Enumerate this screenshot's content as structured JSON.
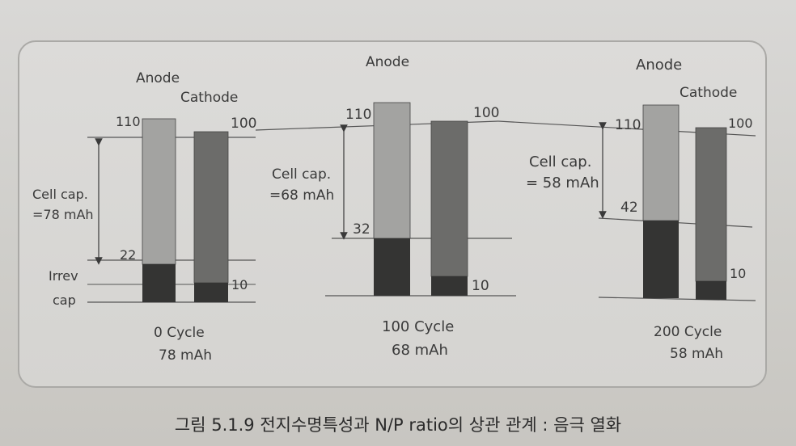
{
  "figure": {
    "panels": [
      {
        "anode_label": "Anode",
        "cathode_label": "Cathode",
        "anode_top": "110",
        "cathode_top": "100",
        "threshold_value": "22",
        "cathode_bottom_value": "10",
        "cell_cap_line1": "Cell cap.",
        "cell_cap_line2": "=78 mAh",
        "irrev_line1": "Irrev",
        "irrev_line2": "cap",
        "cycle_label": "0 Cycle",
        "cycle_capacity": "78 mAh"
      },
      {
        "anode_label": "Anode",
        "cathode_label": "",
        "anode_top": "110",
        "cathode_top": "100",
        "threshold_value": "32",
        "cathode_bottom_value": "10",
        "cell_cap_line1": "Cell cap.",
        "cell_cap_line2": "=68 mAh",
        "cycle_label": "100 Cycle",
        "cycle_capacity": "68 mAh"
      },
      {
        "anode_label": "Anode",
        "cathode_label": "Cathode",
        "anode_top": "110",
        "cathode_top": "100",
        "threshold_value": "42",
        "cathode_bottom_value": "10",
        "cell_cap_line1": "Cell cap.",
        "cell_cap_line2": "= 58 mAh",
        "cycle_label": "200 Cycle",
        "cycle_capacity": "58 mAh"
      }
    ],
    "colors": {
      "anode_light": "#a3a3a1",
      "cathode_mid": "#6c6c6a",
      "dark_fill": "#343433"
    }
  },
  "caption": "그림 5.1.9  전지수명특성과 N/P ratio의 상관 관계 : 음극 열화"
}
